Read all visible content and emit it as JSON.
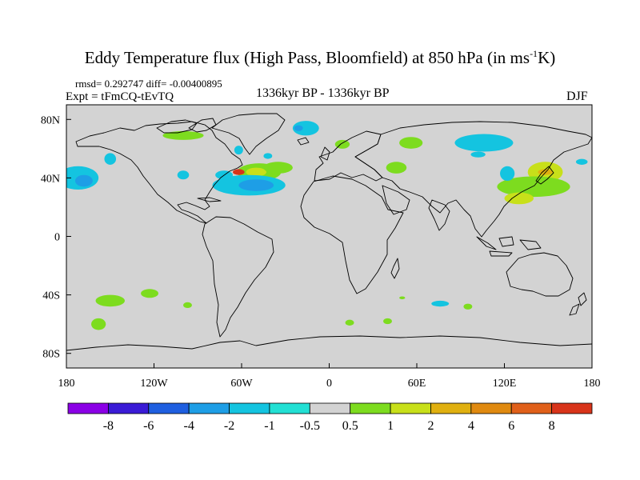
{
  "chart_data": {
    "type": "heatmap",
    "title_main": "Eddy Temperature flux (High Pass, Bloomfield) at 850 hPa (in ms",
    "title_sup": "-1",
    "title_end": "K)",
    "stats": "rmsd= 0.292747 diff= -0.00400895",
    "experiment": "Expt = tFmCQ-tEvTQ",
    "period": "1336kyr BP - 1336kyr BP",
    "season": "DJF",
    "x_ticks": [
      "180",
      "120W",
      "60W",
      "0",
      "60E",
      "120E",
      "180"
    ],
    "y_ticks": [
      "80N",
      "40N",
      "0",
      "40S",
      "80S"
    ],
    "xlim": [
      -180,
      180
    ],
    "ylim": [
      -90,
      90
    ],
    "colorbar": {
      "labels": [
        "-8",
        "-6",
        "-4",
        "-2",
        "-1",
        "-0.5",
        "0.5",
        "1",
        "2",
        "4",
        "6",
        "8"
      ],
      "colors": [
        "#8b00e6",
        "#3a1bd6",
        "#1f5fe0",
        "#1e9ee6",
        "#14c4e0",
        "#22e0d4",
        "#d3d3d3",
        "#7ddc1f",
        "#c8e01a",
        "#e0b010",
        "#e08a10",
        "#e0601a",
        "#d8341a"
      ]
    },
    "anomalies": [
      {
        "lon": -100,
        "lat": 69,
        "rx": 14,
        "ry": 3,
        "level": 7
      },
      {
        "lon": -172,
        "lat": 40,
        "rx": 14,
        "ry": 8,
        "level": 4
      },
      {
        "lon": -168,
        "lat": 38,
        "rx": 6,
        "ry": 4,
        "level": 3
      },
      {
        "lon": -150,
        "lat": 53,
        "rx": 4,
        "ry": 4,
        "level": 4
      },
      {
        "lon": -100,
        "lat": 42,
        "rx": 4,
        "ry": 3,
        "level": 4
      },
      {
        "lon": -72,
        "lat": 42,
        "rx": 6,
        "ry": 3,
        "level": 4
      },
      {
        "lon": -48,
        "lat": 44,
        "rx": 15,
        "ry": 6,
        "level": 7
      },
      {
        "lon": -50,
        "lat": 44,
        "rx": 7,
        "ry": 3,
        "level": 8
      },
      {
        "lon": -62,
        "lat": 44,
        "rx": 4,
        "ry": 2,
        "level": 12
      },
      {
        "lon": -55,
        "lat": 35,
        "rx": 25,
        "ry": 7,
        "level": 4
      },
      {
        "lon": -50,
        "lat": 35,
        "rx": 12,
        "ry": 4,
        "level": 3
      },
      {
        "lon": -35,
        "lat": 47,
        "rx": 10,
        "ry": 4,
        "level": 7
      },
      {
        "lon": -42,
        "lat": 55,
        "rx": 3,
        "ry": 2,
        "level": 4
      },
      {
        "lon": -16,
        "lat": 74,
        "rx": 9,
        "ry": 5,
        "level": 4
      },
      {
        "lon": -21,
        "lat": 74,
        "rx": 3,
        "ry": 2,
        "level": 3
      },
      {
        "lon": -62,
        "lat": 59,
        "rx": 3,
        "ry": 3,
        "level": 4
      },
      {
        "lon": 9,
        "lat": 63,
        "rx": 5,
        "ry": 3,
        "level": 7
      },
      {
        "lon": 56,
        "lat": 64,
        "rx": 8,
        "ry": 4,
        "level": 7
      },
      {
        "lon": 46,
        "lat": 47,
        "rx": 7,
        "ry": 4,
        "level": 7
      },
      {
        "lon": 106,
        "lat": 64,
        "rx": 20,
        "ry": 6,
        "level": 4
      },
      {
        "lon": 102,
        "lat": 56,
        "rx": 5,
        "ry": 2,
        "level": 4
      },
      {
        "lon": 148,
        "lat": 44,
        "rx": 12,
        "ry": 7,
        "level": 8
      },
      {
        "lon": 148,
        "lat": 44,
        "rx": 5,
        "ry": 2,
        "level": 9
      },
      {
        "lon": 140,
        "lat": 34,
        "rx": 25,
        "ry": 7,
        "level": 7
      },
      {
        "lon": 130,
        "lat": 26,
        "rx": 10,
        "ry": 4,
        "level": 8
      },
      {
        "lon": 122,
        "lat": 43,
        "rx": 5,
        "ry": 5,
        "level": 4
      },
      {
        "lon": 173,
        "lat": 51,
        "rx": 4,
        "ry": 2,
        "level": 4
      },
      {
        "lon": -150,
        "lat": -44,
        "rx": 10,
        "ry": 4,
        "level": 7
      },
      {
        "lon": -158,
        "lat": -60,
        "rx": 5,
        "ry": 4,
        "level": 7
      },
      {
        "lon": -123,
        "lat": -39,
        "rx": 6,
        "ry": 3,
        "level": 7
      },
      {
        "lon": -97,
        "lat": -47,
        "rx": 3,
        "ry": 2,
        "level": 7
      },
      {
        "lon": 14,
        "lat": -59,
        "rx": 3,
        "ry": 2,
        "level": 7
      },
      {
        "lon": 40,
        "lat": -58,
        "rx": 3,
        "ry": 2,
        "level": 7
      },
      {
        "lon": 76,
        "lat": -46,
        "rx": 6,
        "ry": 2,
        "level": 4
      },
      {
        "lon": 95,
        "lat": -48,
        "rx": 3,
        "ry": 2,
        "level": 7
      },
      {
        "lon": 50,
        "lat": -42,
        "rx": 2,
        "ry": 1,
        "level": 7
      }
    ]
  }
}
